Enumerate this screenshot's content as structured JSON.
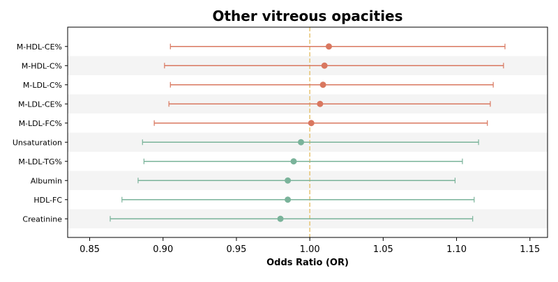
{
  "chart_data": {
    "type": "forest",
    "title": "Other vitreous opacities",
    "xlabel": "Odds Ratio (OR)",
    "xlim": [
      0.835,
      1.162
    ],
    "xticks": [
      0.85,
      0.9,
      0.95,
      1.0,
      1.05,
      1.1,
      1.15
    ],
    "xtick_labels": [
      "0.85",
      "0.90",
      "0.95",
      "1.00",
      "1.05",
      "1.10",
      "1.15"
    ],
    "reference_line": 1.0,
    "colors": {
      "positive": "#d9775f",
      "negative": "#7ab39a",
      "reference": "#e8c77a",
      "band": "#f4f4f4"
    },
    "rows": [
      {
        "label": "M-HDL-CE%",
        "or": 1.013,
        "lower": 0.905,
        "upper": 1.133,
        "group": "positive"
      },
      {
        "label": "M-HDL-C%",
        "or": 1.01,
        "lower": 0.901,
        "upper": 1.132,
        "group": "positive"
      },
      {
        "label": "M-LDL-C%",
        "or": 1.009,
        "lower": 0.905,
        "upper": 1.125,
        "group": "positive"
      },
      {
        "label": "M-LDL-CE%",
        "or": 1.007,
        "lower": 0.904,
        "upper": 1.123,
        "group": "positive"
      },
      {
        "label": "M-LDL-FC%",
        "or": 1.001,
        "lower": 0.894,
        "upper": 1.121,
        "group": "positive"
      },
      {
        "label": "Unsaturation",
        "or": 0.994,
        "lower": 0.886,
        "upper": 1.115,
        "group": "negative"
      },
      {
        "label": "M-LDL-TG%",
        "or": 0.989,
        "lower": 0.887,
        "upper": 1.104,
        "group": "negative"
      },
      {
        "label": "Albumin",
        "or": 0.985,
        "lower": 0.883,
        "upper": 1.099,
        "group": "negative"
      },
      {
        "label": "HDL-FC",
        "or": 0.985,
        "lower": 0.872,
        "upper": 1.112,
        "group": "negative"
      },
      {
        "label": "Creatinine",
        "or": 0.98,
        "lower": 0.864,
        "upper": 1.111,
        "group": "negative"
      }
    ]
  }
}
